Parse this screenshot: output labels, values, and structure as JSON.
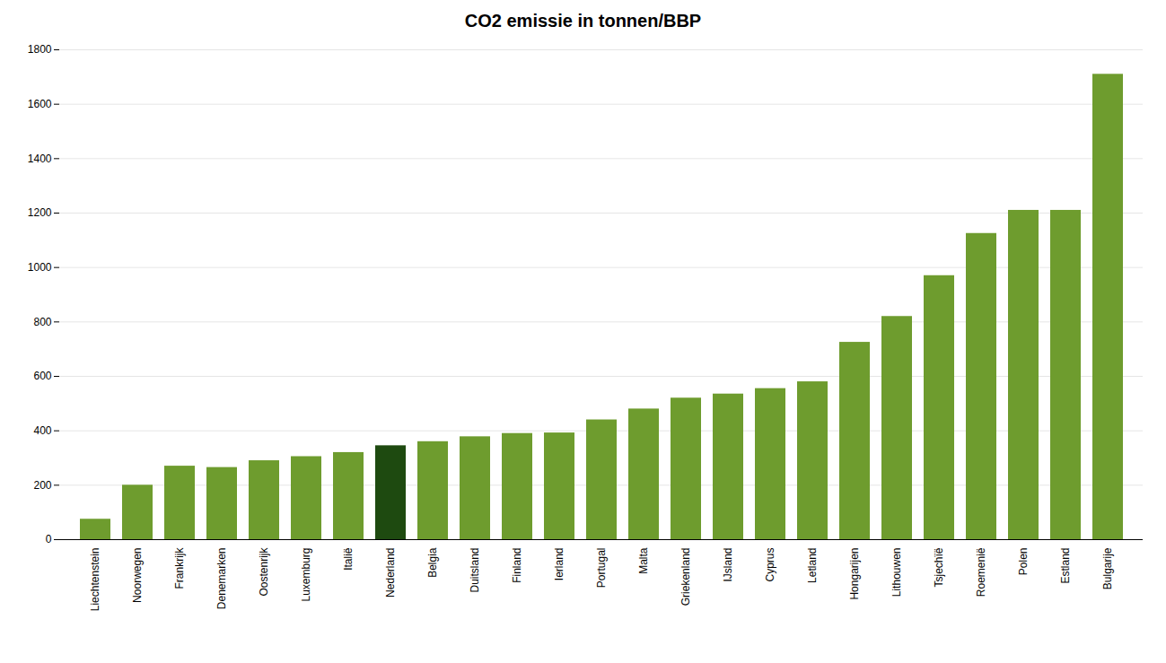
{
  "chart_data": {
    "type": "bar",
    "title": "CO2 emissie in tonnen/BBP",
    "categories": [
      "Liechtenstein",
      "Noorwegen",
      "Frankrijk",
      "Denemarken",
      "Oostenrijk",
      "Luxemburg",
      "Italië",
      "Nederland",
      "Belgia",
      "Duitsland",
      "Finland",
      "Ierland",
      "Portugal",
      "Malta",
      "Griekenland",
      "IJsland",
      "Cyprus",
      "Letland",
      "Hongarijen",
      "Lithouwen",
      "Tsjechïë",
      "Roemenië",
      "Polen",
      "Estland",
      "Bulgarije"
    ],
    "values": [
      75,
      200,
      270,
      265,
      290,
      305,
      320,
      345,
      360,
      378,
      390,
      392,
      440,
      480,
      520,
      535,
      555,
      580,
      725,
      820,
      970,
      1125,
      1210,
      1210,
      1710
    ],
    "colors": [
      "#6e9c2e",
      "#6e9c2e",
      "#6e9c2e",
      "#6e9c2e",
      "#6e9c2e",
      "#6e9c2e",
      "#6e9c2e",
      "#1e4a10",
      "#6e9c2e",
      "#6e9c2e",
      "#6e9c2e",
      "#6e9c2e",
      "#6e9c2e",
      "#6e9c2e",
      "#6e9c2e",
      "#6e9c2e",
      "#6e9c2e",
      "#6e9c2e",
      "#6e9c2e",
      "#6e9c2e",
      "#6e9c2e",
      "#6e9c2e",
      "#6e9c2e",
      "#6e9c2e",
      "#6e9c2e"
    ],
    "ylim": [
      0,
      1800
    ],
    "yticks": [
      0,
      200,
      400,
      600,
      800,
      1000,
      1200,
      1400,
      1600,
      1800
    ],
    "grid": true
  }
}
